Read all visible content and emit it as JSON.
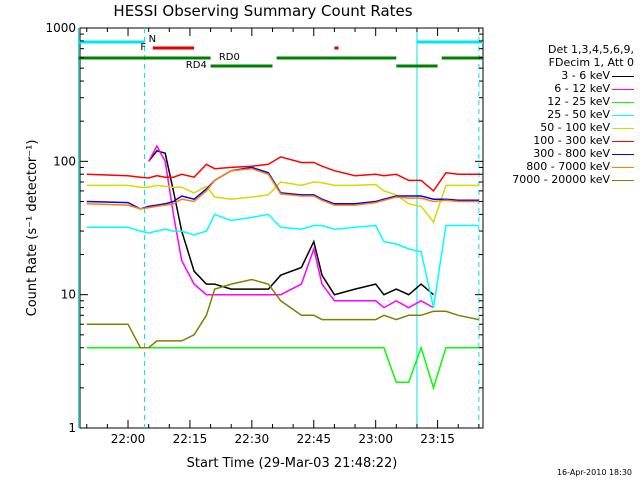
{
  "chart_data": {
    "type": "line",
    "title": "HESSI Observing Summary Count Rates",
    "xlabel": "Start Time (29-Mar-03 21:48:22)",
    "ylabel": "Count Rate (s⁻¹ detector⁻¹)",
    "y_scale": "log",
    "xlim": [
      "21:48:22",
      "23:26:00"
    ],
    "ylim": [
      1,
      1000
    ],
    "x_ticks": [
      "22:00",
      "22:15",
      "22:30",
      "22:45",
      "23:00",
      "23:15"
    ],
    "y_ticks": [
      "1",
      "10",
      "100",
      "1000"
    ],
    "timestamp": "16-Apr-2010 18:30",
    "legend": {
      "placement": "right",
      "header": [
        "Det 1,3,4,5,6,9,",
        "FDecim 1, Att 0"
      ]
    },
    "flags": [
      {
        "label": "N",
        "color": "#00e5ee",
        "segments": [
          [
            "21:48",
            "22:04"
          ],
          [
            "23:10",
            "23:26"
          ]
        ]
      },
      {
        "label": "F",
        "color": "#e00000",
        "segments": [
          [
            "22:06",
            "22:16"
          ],
          [
            "22:50",
            "22:51"
          ]
        ]
      },
      {
        "label": "RD0",
        "color": "#008000",
        "segments": [
          [
            "21:48",
            "22:20"
          ],
          [
            "22:36",
            "23:05"
          ],
          [
            "23:16",
            "23:26"
          ]
        ]
      },
      {
        "label": "RD4",
        "color": "#008000",
        "segments": [
          [
            "22:20",
            "22:35"
          ],
          [
            "23:05",
            "23:15"
          ]
        ]
      }
    ],
    "vlines": [
      {
        "t": "21:48",
        "style": "solid",
        "color": "#00e5ee"
      },
      {
        "t": "22:04",
        "style": "dashed",
        "color": "#00e5ee"
      },
      {
        "t": "23:10",
        "style": "solid",
        "color": "#00e5ee"
      },
      {
        "t": "23:25",
        "style": "dashed",
        "color": "#00e5ee"
      }
    ],
    "x": [
      "21:50",
      "22:00",
      "22:03",
      "22:05",
      "22:07",
      "22:09",
      "22:11",
      "22:13",
      "22:16",
      "22:19",
      "22:21",
      "22:25",
      "22:30",
      "22:34",
      "22:37",
      "22:42",
      "22:45",
      "22:47",
      "22:50",
      "22:55",
      "23:00",
      "23:02",
      "23:05",
      "23:08",
      "23:11",
      "23:14",
      "23:17",
      "23:20",
      "23:25"
    ],
    "series": [
      {
        "name": "3 - 6 keV",
        "color": "#000000",
        "values": [
          null,
          null,
          null,
          100,
          120,
          115,
          60,
          30,
          15,
          12,
          12,
          11,
          11,
          11,
          14,
          16,
          25,
          14,
          10,
          11,
          12,
          10,
          11,
          10,
          12,
          10,
          null,
          null,
          null
        ]
      },
      {
        "name": "6 - 12 keV",
        "color": "#ff00ff",
        "values": [
          null,
          null,
          null,
          100,
          130,
          100,
          40,
          18,
          12,
          10,
          10,
          10,
          10,
          10,
          10,
          12,
          22,
          12,
          9,
          9,
          9,
          8,
          9,
          8,
          9,
          8,
          null,
          null,
          null
        ]
      },
      {
        "name": "12 - 25 keV",
        "color": "#00ff00",
        "values": [
          4,
          4,
          4,
          4,
          4,
          4,
          4,
          4,
          4,
          4,
          4,
          4,
          4,
          4,
          4,
          4,
          4,
          4,
          4,
          4,
          4,
          4,
          2.2,
          2.2,
          4,
          2,
          4,
          4,
          4
        ]
      },
      {
        "name": "25 - 50 keV",
        "color": "#00ffff",
        "values": [
          32,
          32,
          30,
          29,
          30,
          31,
          30,
          30,
          28,
          30,
          40,
          36,
          38,
          40,
          32,
          31,
          33,
          33,
          31,
          32,
          33,
          25,
          24,
          22,
          21,
          8,
          33,
          33,
          33
        ]
      },
      {
        "name": "50 - 100 keV",
        "color": "#d8d800",
        "values": [
          66,
          66,
          64,
          64,
          66,
          65,
          64,
          64,
          58,
          65,
          54,
          52,
          54,
          56,
          70,
          66,
          70,
          69,
          66,
          66,
          67,
          60,
          56,
          48,
          46,
          35,
          66,
          66,
          66
        ]
      },
      {
        "name": "100 - 300 keV",
        "color": "#ff0000",
        "values": [
          80,
          78,
          76,
          75,
          78,
          76,
          76,
          80,
          76,
          95,
          88,
          90,
          92,
          95,
          108,
          98,
          98,
          92,
          85,
          78,
          80,
          78,
          80,
          72,
          72,
          60,
          82,
          80,
          80
        ]
      },
      {
        "name": "300 - 800 keV",
        "color": "#0000ff",
        "values": [
          50,
          49,
          44,
          46,
          47,
          48,
          50,
          55,
          52,
          62,
          72,
          85,
          90,
          82,
          58,
          56,
          56,
          52,
          48,
          48,
          50,
          52,
          55,
          55,
          55,
          52,
          52,
          51,
          51
        ]
      },
      {
        "name": "800 - 7000 keV",
        "color": "#ff8000",
        "values": [
          48,
          47,
          44,
          45,
          46,
          47,
          48,
          52,
          50,
          60,
          72,
          85,
          88,
          80,
          57,
          55,
          55,
          51,
          47,
          47,
          49,
          51,
          54,
          53,
          53,
          50,
          51,
          50,
          50
        ]
      },
      {
        "name": "7000 - 20000 keV",
        "color": "#808000",
        "values": [
          6,
          6,
          4,
          4,
          4.5,
          4.5,
          4.5,
          4.5,
          5,
          7,
          11,
          12,
          13,
          12,
          9,
          7,
          7,
          6.5,
          6.5,
          6.5,
          6.5,
          7,
          6.5,
          7,
          7,
          7.5,
          7.5,
          7,
          6.5
        ]
      }
    ]
  }
}
